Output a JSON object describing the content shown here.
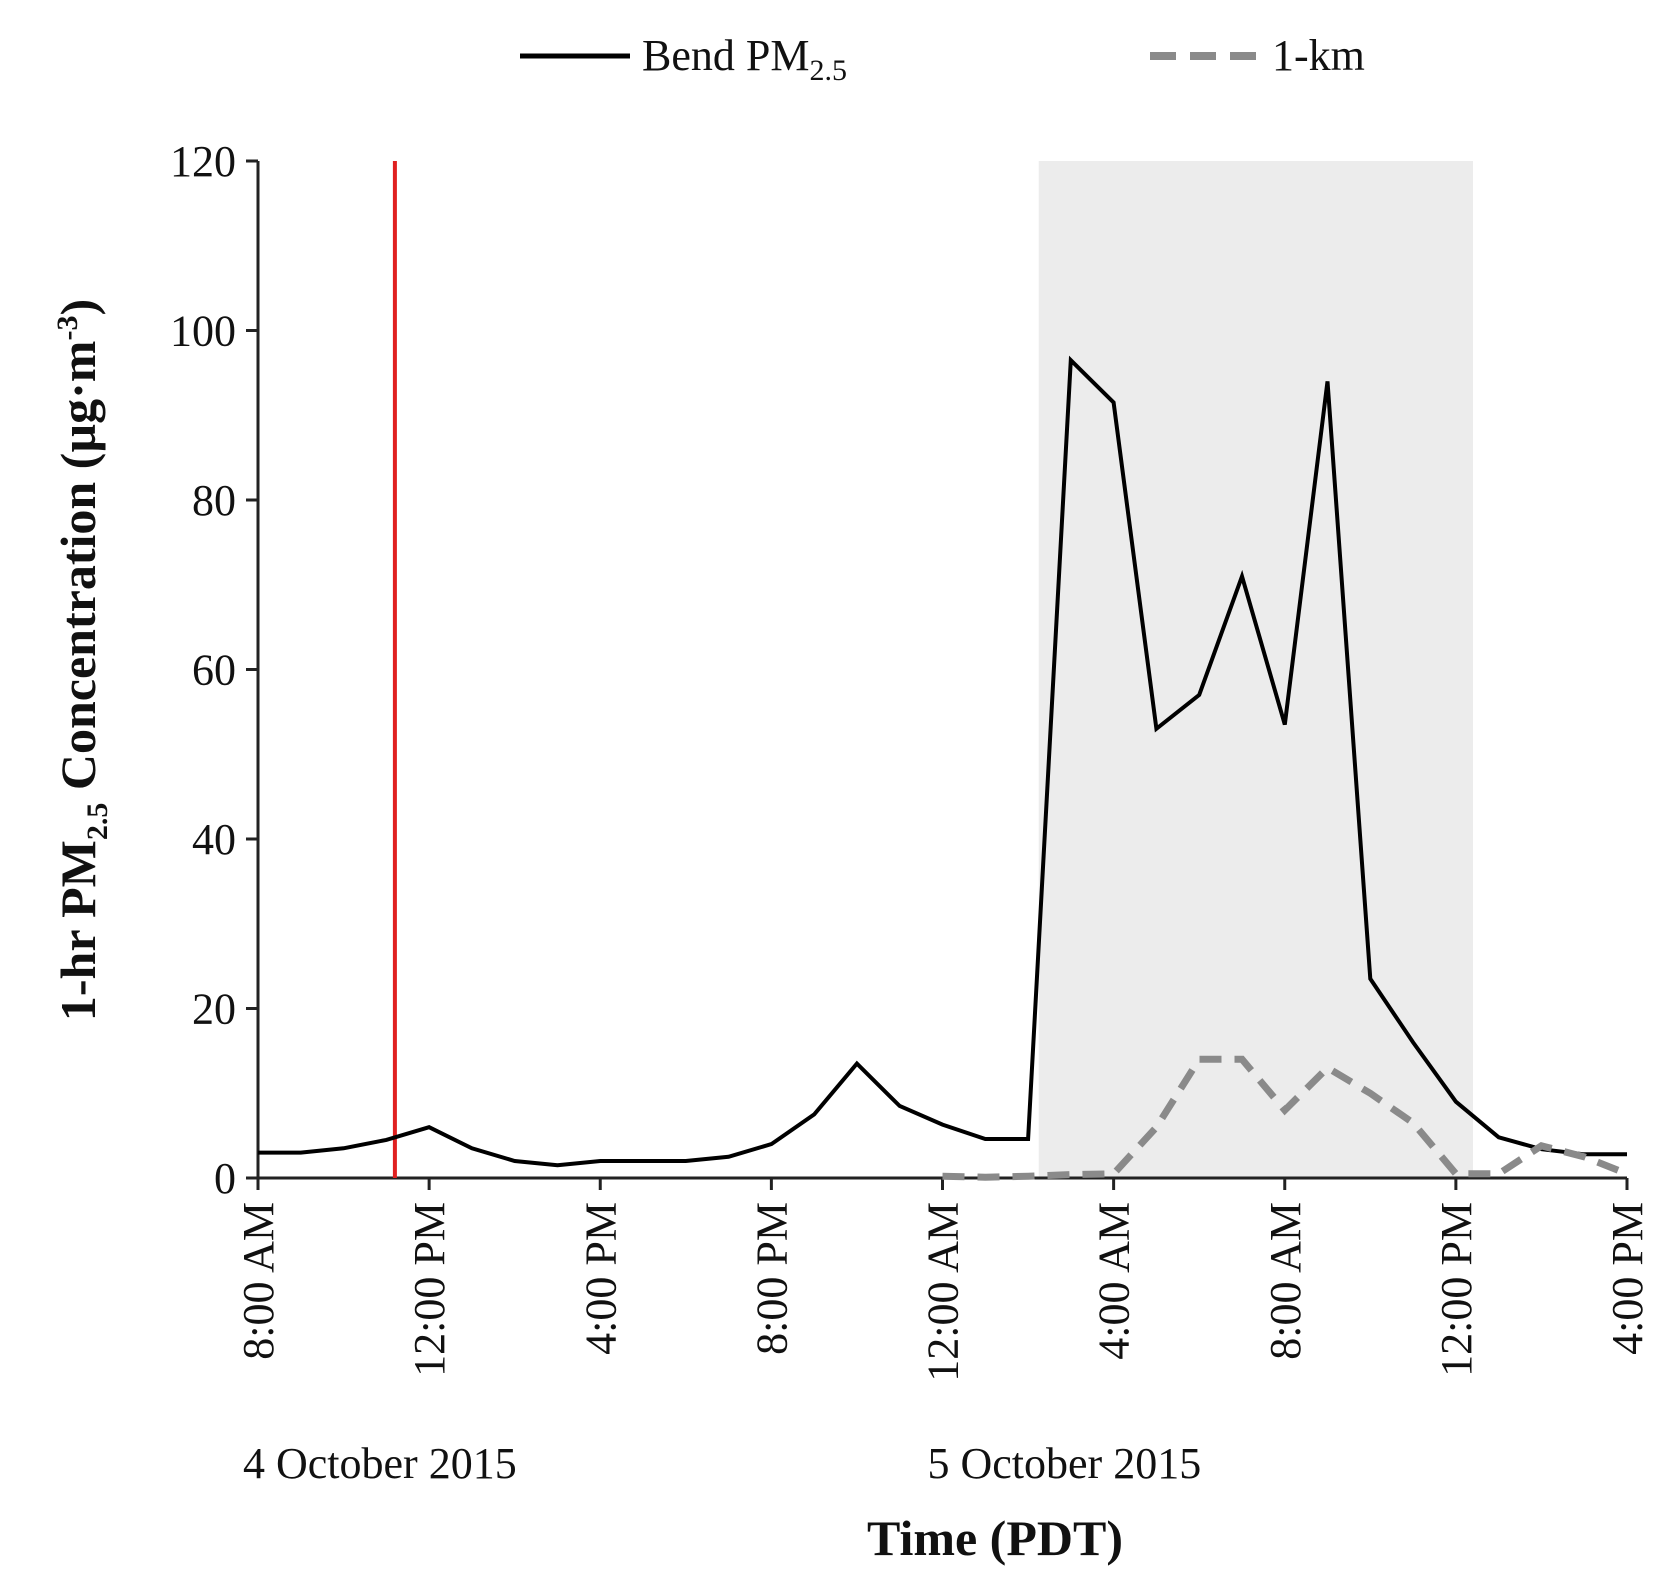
{
  "chart_data": {
    "type": "line",
    "xlabel": "Time (PDT)",
    "ylabel": {
      "prefix": "1-hr PM",
      "subscript": "2.5",
      "suffix": " Concentration (µg·m",
      "superscript": "-3",
      "close": ")"
    },
    "ylim": [
      0,
      120
    ],
    "yticks": [
      0,
      20,
      40,
      60,
      80,
      100,
      120
    ],
    "xlim_hours": [
      0,
      32
    ],
    "x_unit": "hours since 8:00 AM 4 October 2015",
    "xtick_hours": [
      0,
      4,
      8,
      12,
      16,
      20,
      24,
      28,
      32
    ],
    "xtick_labels": [
      "8:00 AM",
      "12:00 PM",
      "4:00 PM",
      "8:00 PM",
      "12:00 AM",
      "4:00 AM",
      "8:00 AM",
      "12:00 PM",
      "4:00 PM"
    ],
    "date_labels": [
      {
        "text": "4 October 2015",
        "hour": 0
      },
      {
        "text": "5 October 2015",
        "hour": 16
      }
    ],
    "shaded_region_hours": [
      18.25,
      28.4
    ],
    "vertical_marker_hour": 3.2,
    "series": [
      {
        "name": "Bend PM2.5",
        "legend_label": {
          "prefix": "Bend PM",
          "subscript": "2.5"
        },
        "style": "solid",
        "color": "#000000",
        "x": [
          0,
          1,
          2,
          3,
          4,
          5,
          6,
          7,
          8,
          9,
          10,
          11,
          12,
          13,
          14,
          15,
          16,
          17,
          18,
          19,
          20,
          21,
          22,
          23,
          24,
          25,
          26,
          27,
          28,
          29,
          30,
          31,
          32
        ],
        "values": [
          3,
          3,
          3.5,
          4.5,
          6,
          3.5,
          2,
          1.5,
          2,
          2,
          2,
          2.5,
          4,
          7.5,
          13.5,
          8.5,
          6.3,
          4.6,
          4.6,
          96.5,
          91.5,
          53,
          57,
          71,
          53.5,
          94,
          23.5,
          16,
          9,
          4.8,
          3.4,
          2.8,
          2.8
        ]
      },
      {
        "name": "1-km",
        "legend_label": {
          "prefix": "1-km",
          "subscript": ""
        },
        "style": "dashed",
        "color": "#8a8a8a",
        "x": [
          16,
          17,
          18,
          19,
          20,
          21,
          22,
          23,
          24,
          25,
          26,
          27,
          28,
          29,
          30,
          31,
          32
        ],
        "values": [
          0.2,
          0.1,
          0.2,
          0.4,
          0.5,
          6,
          14,
          14,
          8,
          13,
          10,
          6.5,
          0.5,
          0.5,
          3.8,
          2.5,
          0.5
        ]
      }
    ]
  }
}
